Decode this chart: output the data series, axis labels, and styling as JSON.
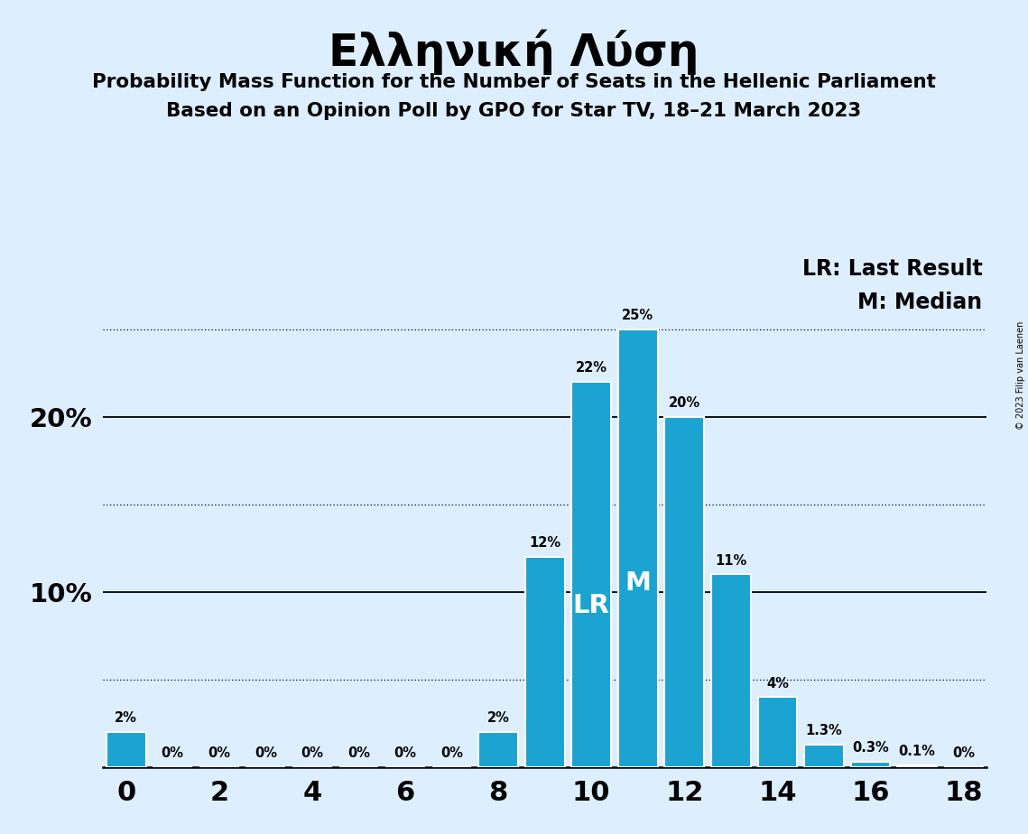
{
  "title": "Ελληνική Λύση",
  "subtitle1": "Probability Mass Function for the Number of Seats in the Hellenic Parliament",
  "subtitle2": "Based on an Opinion Poll by GPO for Star TV, 18–21 March 2023",
  "copyright": "© 2023 Filip van Laenen",
  "seats": [
    0,
    1,
    2,
    3,
    4,
    5,
    6,
    7,
    8,
    9,
    10,
    11,
    12,
    13,
    14,
    15,
    16,
    17,
    18
  ],
  "probabilities": [
    0.02,
    0.0,
    0.0,
    0.0,
    0.0,
    0.0,
    0.0,
    0.0,
    0.02,
    0.12,
    0.22,
    0.25,
    0.2,
    0.11,
    0.04,
    0.013,
    0.003,
    0.001,
    0.0
  ],
  "bar_labels": [
    "2%",
    "0%",
    "0%",
    "0%",
    "0%",
    "0%",
    "0%",
    "0%",
    "2%",
    "12%",
    "22%",
    "25%",
    "20%",
    "11%",
    "4%",
    "1.3%",
    "0.3%",
    "0.1%",
    "0%"
  ],
  "bar_color": "#1ba3d2",
  "background_color": "#ddeeff",
  "last_result_seat": 10,
  "median_seat": 11,
  "lr_label": "LR",
  "m_label": "M",
  "legend_lr": "LR: Last Result",
  "legend_m": "M: Median",
  "solid_yticks": [
    0.1,
    0.2
  ],
  "dotted_yticks": [
    0.05,
    0.15,
    0.25
  ],
  "xlim": [
    -0.5,
    18.5
  ],
  "ylim": [
    0,
    0.295
  ]
}
